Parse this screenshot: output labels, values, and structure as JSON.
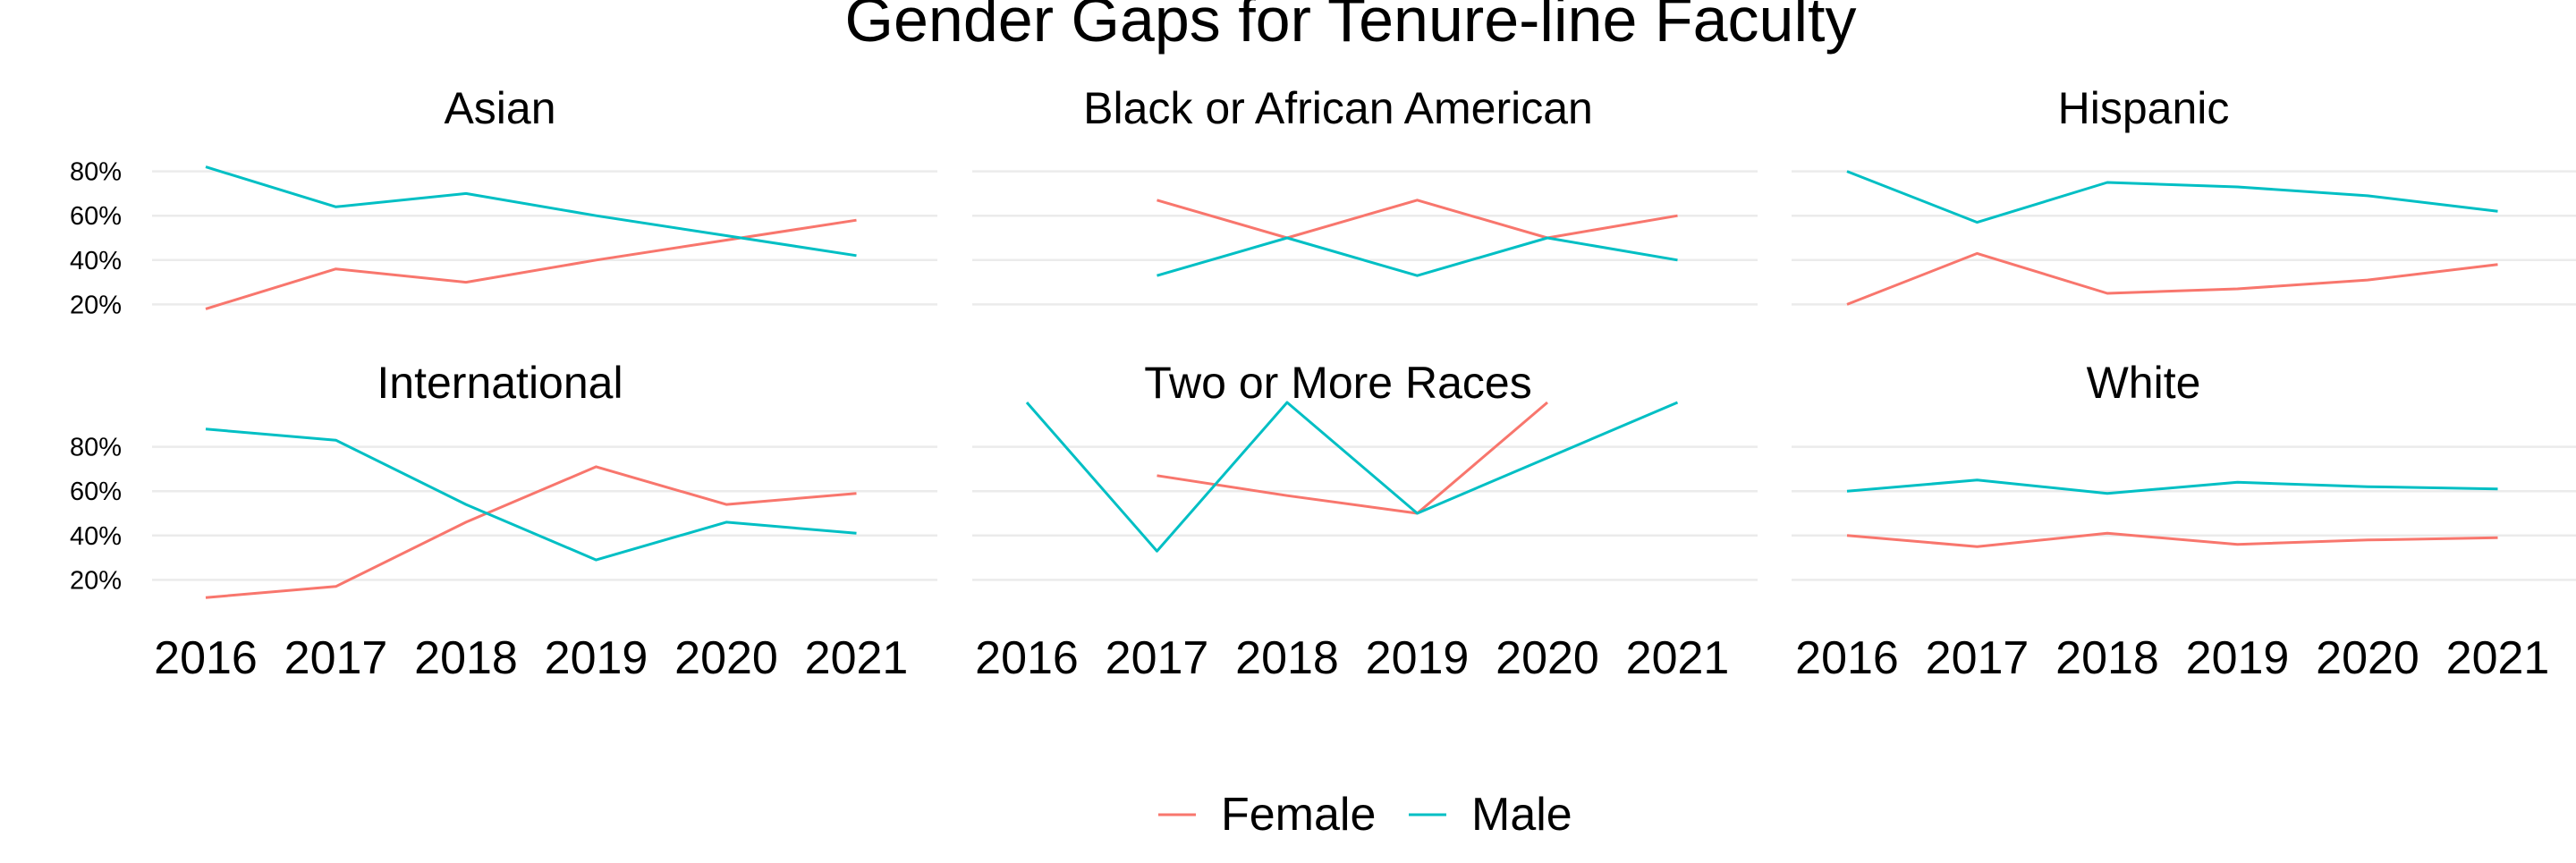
{
  "title": "Gender Gaps for Tenure-line Faculty",
  "legend": {
    "position": "bottom",
    "items": [
      {
        "label": "Female",
        "color": "#F8766D"
      },
      {
        "label": "Male",
        "color": "#00BFC4"
      }
    ]
  },
  "chart_data": {
    "type": "line",
    "title": "Gender Gaps for Tenure-line Faculty",
    "x": [
      2016,
      2017,
      2018,
      2019,
      2020,
      2021
    ],
    "y_ticks": [
      "20%",
      "40%",
      "60%",
      "80%"
    ],
    "ylim": [
      0,
      1
    ],
    "grid": true,
    "legend_position": "bottom",
    "panels": [
      {
        "title": "Asian",
        "series": [
          {
            "name": "Female",
            "values": [
              0.18,
              0.36,
              0.3,
              0.4,
              0.49,
              0.58
            ]
          },
          {
            "name": "Male",
            "values": [
              0.82,
              0.64,
              0.7,
              0.6,
              0.51,
              0.42
            ]
          }
        ]
      },
      {
        "title": "Black or African American",
        "series": [
          {
            "name": "Female",
            "values": [
              null,
              0.67,
              0.5,
              0.67,
              0.5,
              0.6
            ]
          },
          {
            "name": "Male",
            "values": [
              null,
              0.33,
              0.5,
              0.33,
              0.5,
              0.4
            ]
          }
        ]
      },
      {
        "title": "Hispanic",
        "series": [
          {
            "name": "Female",
            "values": [
              0.2,
              0.43,
              0.25,
              0.27,
              0.31,
              0.38
            ]
          },
          {
            "name": "Male",
            "values": [
              0.8,
              0.57,
              0.75,
              0.73,
              0.69,
              0.62
            ]
          }
        ]
      },
      {
        "title": "International",
        "series": [
          {
            "name": "Female",
            "values": [
              0.12,
              0.17,
              0.46,
              0.71,
              0.54,
              0.59
            ]
          },
          {
            "name": "Male",
            "values": [
              0.88,
              0.83,
              0.54,
              0.29,
              0.46,
              0.41
            ]
          }
        ]
      },
      {
        "title": "Two or More Races",
        "series": [
          {
            "name": "Female",
            "values": [
              null,
              0.67,
              0.58,
              0.5,
              1.0,
              null
            ]
          },
          {
            "name": "Male",
            "values": [
              1.0,
              0.33,
              1.0,
              0.5,
              0.75,
              1.0
            ]
          }
        ]
      },
      {
        "title": "White",
        "series": [
          {
            "name": "Female",
            "values": [
              0.4,
              0.35,
              0.41,
              0.36,
              0.38,
              0.39
            ]
          },
          {
            "name": "Male",
            "values": [
              0.6,
              0.65,
              0.59,
              0.64,
              0.62,
              0.61
            ]
          }
        ]
      }
    ]
  }
}
